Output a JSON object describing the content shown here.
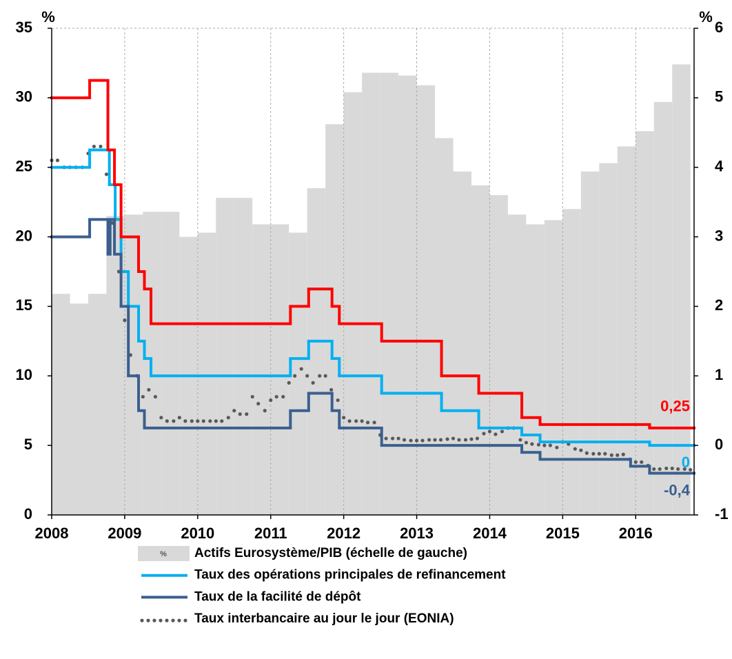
{
  "chart_data": {
    "type": "combo",
    "y_label": "%",
    "y2_label": "%",
    "xlim": [
      2008,
      2016.8
    ],
    "xticks": [
      2008,
      2009,
      2010,
      2011,
      2012,
      2013,
      2014,
      2015,
      2016
    ],
    "ylim": [
      0,
      35
    ],
    "yticks": [
      0,
      5,
      10,
      15,
      20,
      25,
      30,
      35
    ],
    "y2lim": [
      -1,
      6
    ],
    "y2ticks": [
      -1,
      0,
      1,
      2,
      3,
      4,
      5,
      6
    ],
    "grid": "x",
    "series": [
      {
        "name": "Actifs Eurosystème/PIB (échelle de gauche)",
        "type": "bar",
        "color": "#d9d9d9",
        "swatch_label": "%",
        "bins": [
          2008,
          2008.25,
          2008.5,
          2008.75,
          2009,
          2009.25,
          2009.5,
          2009.75,
          2010,
          2010.25,
          2010.5,
          2010.75,
          2011,
          2011.25,
          2011.5,
          2011.75,
          2012,
          2012.25,
          2012.5,
          2012.75,
          2013,
          2013.25,
          2013.5,
          2013.75,
          2014,
          2014.25,
          2014.5,
          2014.75,
          2015,
          2015.25,
          2015.5,
          2015.75,
          2016,
          2016.25,
          2016.5,
          2016.75
        ],
        "values": [
          15.9,
          15.2,
          15.9,
          21.5,
          21.6,
          21.8,
          21.8,
          20.0,
          20.3,
          22.8,
          22.8,
          20.9,
          20.9,
          20.3,
          23.5,
          28.1,
          30.4,
          31.8,
          31.8,
          31.6,
          30.9,
          27.1,
          24.7,
          23.7,
          23.0,
          21.6,
          20.9,
          21.2,
          22.0,
          24.7,
          25.3,
          26.5,
          27.6,
          29.7,
          32.4
        ]
      },
      {
        "name": "Taux des opérations principales de refinancement",
        "type": "step",
        "axis": "y2",
        "color": "#00b0f0",
        "end_label": "0",
        "x": [
          2008,
          2008.52,
          2008.79,
          2008.87,
          2008.95,
          2009.05,
          2009.19,
          2009.27,
          2009.36,
          2011.27,
          2011.52,
          2011.84,
          2011.94,
          2012.52,
          2013.34,
          2013.85,
          2014.44,
          2014.69,
          2016.19
        ],
        "values": [
          4,
          4.25,
          3.75,
          3.25,
          2.5,
          2,
          1.5,
          1.25,
          1,
          1.25,
          1.5,
          1.25,
          1,
          0.75,
          0.5,
          0.25,
          0.15,
          0.05,
          0
        ]
      },
      {
        "name": "Taux de la facilité de dépôt",
        "type": "step",
        "axis": "y2",
        "color": "#3a5f8e",
        "end_label": "-0,4",
        "x": [
          2008,
          2008.52,
          2008.77,
          2008.8,
          2008.86,
          2008.95,
          2009.05,
          2009.19,
          2009.27,
          2011.27,
          2011.52,
          2011.84,
          2011.94,
          2012.52,
          2014.44,
          2014.69,
          2015.93,
          2016.19
        ],
        "values": [
          3,
          3.25,
          2.75,
          3.25,
          2.75,
          2,
          1,
          0.5,
          0.25,
          0.5,
          0.75,
          0.5,
          0.25,
          0,
          -0.1,
          -0.2,
          -0.3,
          -0.4
        ]
      },
      {
        "type": "step",
        "axis": "y2",
        "color": "#ff0000",
        "end_label": "0,25",
        "x": [
          2008,
          2008.52,
          2008.77,
          2008.86,
          2008.95,
          2009.19,
          2009.27,
          2009.36,
          2011.27,
          2011.52,
          2011.84,
          2011.94,
          2012.52,
          2013.34,
          2013.85,
          2014.44,
          2014.69,
          2016.19
        ],
        "values": [
          5,
          5.25,
          4.25,
          3.75,
          3,
          2.5,
          2.25,
          1.75,
          2,
          2.25,
          2,
          1.75,
          1.5,
          1,
          0.75,
          0.4,
          0.3,
          0.25
        ]
      },
      {
        "name": "Taux interbancaire au jour le jour (EONIA)",
        "type": "scatter",
        "axis": "y2",
        "color": "#595959",
        "x": [
          2008.0,
          2008.08,
          2008.17,
          2008.25,
          2008.33,
          2008.42,
          2008.5,
          2008.58,
          2008.67,
          2008.75,
          2008.83,
          2008.92,
          2009.0,
          2009.08,
          2009.17,
          2009.25,
          2009.33,
          2009.42,
          2009.5,
          2009.58,
          2009.67,
          2009.75,
          2009.83,
          2009.92,
          2010.0,
          2010.08,
          2010.17,
          2010.25,
          2010.33,
          2010.42,
          2010.5,
          2010.58,
          2010.67,
          2010.75,
          2010.83,
          2010.92,
          2011.0,
          2011.08,
          2011.17,
          2011.25,
          2011.33,
          2011.42,
          2011.5,
          2011.58,
          2011.67,
          2011.75,
          2011.83,
          2011.92,
          2012.0,
          2012.08,
          2012.17,
          2012.25,
          2012.33,
          2012.42,
          2012.5,
          2012.58,
          2012.67,
          2012.75,
          2012.83,
          2012.92,
          2013.0,
          2013.08,
          2013.17,
          2013.25,
          2013.33,
          2013.42,
          2013.5,
          2013.58,
          2013.67,
          2013.75,
          2013.83,
          2013.92,
          2014.0,
          2014.08,
          2014.17,
          2014.25,
          2014.33,
          2014.42,
          2014.5,
          2014.58,
          2014.67,
          2014.75,
          2014.83,
          2014.92,
          2015.0,
          2015.08,
          2015.17,
          2015.25,
          2015.33,
          2015.42,
          2015.5,
          2015.58,
          2015.67,
          2015.75,
          2015.83,
          2015.92,
          2016.0,
          2016.08,
          2016.17,
          2016.25,
          2016.33,
          2016.42,
          2016.5,
          2016.58,
          2016.67,
          2016.75
        ],
        "values": [
          4.1,
          4.1,
          4.0,
          4.0,
          4.0,
          4.0,
          4.2,
          4.3,
          4.3,
          3.9,
          3.2,
          2.5,
          1.8,
          1.3,
          1.0,
          0.7,
          0.8,
          0.7,
          0.4,
          0.35,
          0.35,
          0.4,
          0.35,
          0.35,
          0.35,
          0.35,
          0.35,
          0.35,
          0.35,
          0.4,
          0.5,
          0.45,
          0.45,
          0.7,
          0.6,
          0.5,
          0.65,
          0.7,
          0.7,
          0.9,
          1.0,
          1.1,
          1.0,
          0.9,
          1.0,
          1.0,
          0.8,
          0.65,
          0.4,
          0.35,
          0.35,
          0.35,
          0.33,
          0.33,
          0.15,
          0.1,
          0.1,
          0.1,
          0.08,
          0.07,
          0.07,
          0.07,
          0.08,
          0.08,
          0.08,
          0.09,
          0.1,
          0.08,
          0.08,
          0.09,
          0.1,
          0.17,
          0.2,
          0.16,
          0.2,
          0.25,
          0.25,
          0.08,
          0.04,
          0.02,
          0.01,
          0.0,
          0.0,
          -0.03,
          0.05,
          0.02,
          -0.05,
          -0.07,
          -0.11,
          -0.12,
          -0.12,
          -0.12,
          -0.14,
          -0.14,
          -0.13,
          -0.2,
          -0.24,
          -0.24,
          -0.29,
          -0.34,
          -0.34,
          -0.33,
          -0.33,
          -0.34,
          -0.34,
          -0.35
        ]
      }
    ]
  }
}
